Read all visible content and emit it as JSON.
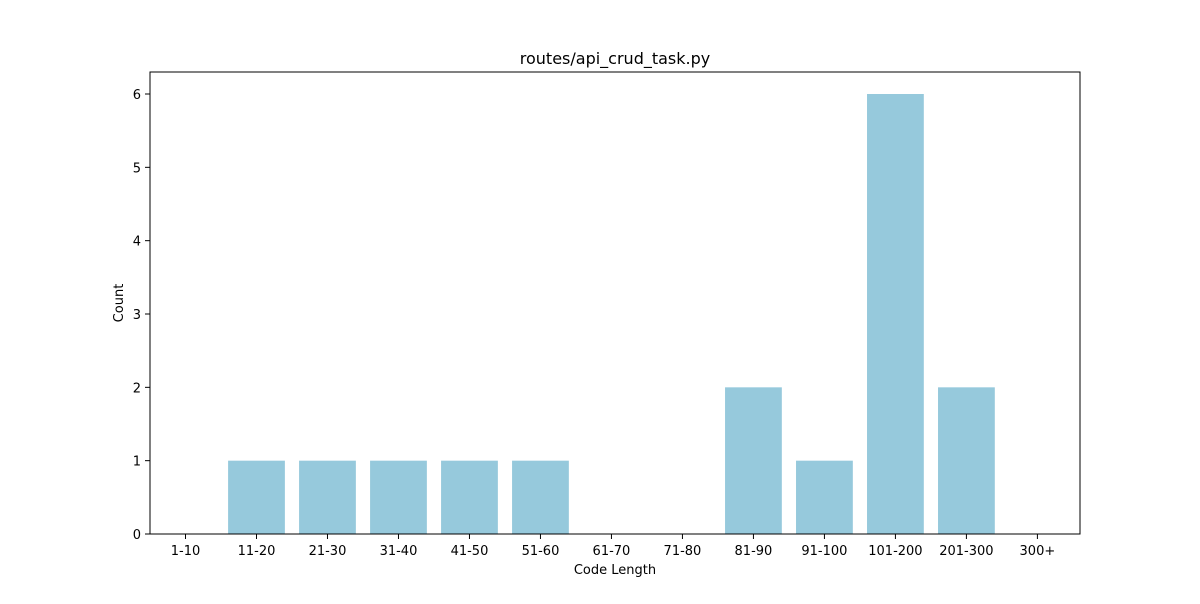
{
  "chart_data": {
    "type": "bar",
    "title": "routes/api_crud_task.py",
    "xlabel": "Code Length",
    "ylabel": "Count",
    "categories": [
      "1-10",
      "11-20",
      "21-30",
      "31-40",
      "41-50",
      "51-60",
      "61-70",
      "71-80",
      "81-90",
      "91-100",
      "101-200",
      "201-300",
      "300+"
    ],
    "values": [
      0,
      1,
      1,
      1,
      1,
      1,
      0,
      0,
      2,
      1,
      6,
      2,
      0
    ],
    "ylim": [
      0,
      6.3
    ],
    "yticks": [
      0,
      1,
      2,
      3,
      4,
      5,
      6
    ],
    "bar_color": "#96c9dc",
    "grid": false,
    "legend": false
  }
}
